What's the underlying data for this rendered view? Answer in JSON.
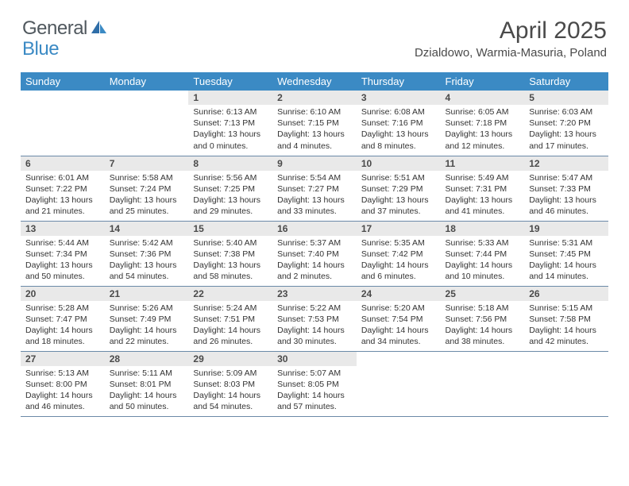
{
  "brand": {
    "text1": "General",
    "text2": "Blue"
  },
  "title": "April 2025",
  "location": "Dzialdowo, Warmia-Masuria, Poland",
  "colors": {
    "header_bg": "#3b8ac4",
    "header_text": "#ffffff",
    "daynum_bg": "#e9e9e9",
    "text": "#333333",
    "title_color": "#4a4a4a",
    "row_border": "#6b8aa8"
  },
  "dayNames": [
    "Sunday",
    "Monday",
    "Tuesday",
    "Wednesday",
    "Thursday",
    "Friday",
    "Saturday"
  ],
  "weeks": [
    [
      {
        "n": "",
        "sr": "",
        "ss": "",
        "dl": ""
      },
      {
        "n": "",
        "sr": "",
        "ss": "",
        "dl": ""
      },
      {
        "n": "1",
        "sr": "Sunrise: 6:13 AM",
        "ss": "Sunset: 7:13 PM",
        "dl": "Daylight: 13 hours and 0 minutes."
      },
      {
        "n": "2",
        "sr": "Sunrise: 6:10 AM",
        "ss": "Sunset: 7:15 PM",
        "dl": "Daylight: 13 hours and 4 minutes."
      },
      {
        "n": "3",
        "sr": "Sunrise: 6:08 AM",
        "ss": "Sunset: 7:16 PM",
        "dl": "Daylight: 13 hours and 8 minutes."
      },
      {
        "n": "4",
        "sr": "Sunrise: 6:05 AM",
        "ss": "Sunset: 7:18 PM",
        "dl": "Daylight: 13 hours and 12 minutes."
      },
      {
        "n": "5",
        "sr": "Sunrise: 6:03 AM",
        "ss": "Sunset: 7:20 PM",
        "dl": "Daylight: 13 hours and 17 minutes."
      }
    ],
    [
      {
        "n": "6",
        "sr": "Sunrise: 6:01 AM",
        "ss": "Sunset: 7:22 PM",
        "dl": "Daylight: 13 hours and 21 minutes."
      },
      {
        "n": "7",
        "sr": "Sunrise: 5:58 AM",
        "ss": "Sunset: 7:24 PM",
        "dl": "Daylight: 13 hours and 25 minutes."
      },
      {
        "n": "8",
        "sr": "Sunrise: 5:56 AM",
        "ss": "Sunset: 7:25 PM",
        "dl": "Daylight: 13 hours and 29 minutes."
      },
      {
        "n": "9",
        "sr": "Sunrise: 5:54 AM",
        "ss": "Sunset: 7:27 PM",
        "dl": "Daylight: 13 hours and 33 minutes."
      },
      {
        "n": "10",
        "sr": "Sunrise: 5:51 AM",
        "ss": "Sunset: 7:29 PM",
        "dl": "Daylight: 13 hours and 37 minutes."
      },
      {
        "n": "11",
        "sr": "Sunrise: 5:49 AM",
        "ss": "Sunset: 7:31 PM",
        "dl": "Daylight: 13 hours and 41 minutes."
      },
      {
        "n": "12",
        "sr": "Sunrise: 5:47 AM",
        "ss": "Sunset: 7:33 PM",
        "dl": "Daylight: 13 hours and 46 minutes."
      }
    ],
    [
      {
        "n": "13",
        "sr": "Sunrise: 5:44 AM",
        "ss": "Sunset: 7:34 PM",
        "dl": "Daylight: 13 hours and 50 minutes."
      },
      {
        "n": "14",
        "sr": "Sunrise: 5:42 AM",
        "ss": "Sunset: 7:36 PM",
        "dl": "Daylight: 13 hours and 54 minutes."
      },
      {
        "n": "15",
        "sr": "Sunrise: 5:40 AM",
        "ss": "Sunset: 7:38 PM",
        "dl": "Daylight: 13 hours and 58 minutes."
      },
      {
        "n": "16",
        "sr": "Sunrise: 5:37 AM",
        "ss": "Sunset: 7:40 PM",
        "dl": "Daylight: 14 hours and 2 minutes."
      },
      {
        "n": "17",
        "sr": "Sunrise: 5:35 AM",
        "ss": "Sunset: 7:42 PM",
        "dl": "Daylight: 14 hours and 6 minutes."
      },
      {
        "n": "18",
        "sr": "Sunrise: 5:33 AM",
        "ss": "Sunset: 7:44 PM",
        "dl": "Daylight: 14 hours and 10 minutes."
      },
      {
        "n": "19",
        "sr": "Sunrise: 5:31 AM",
        "ss": "Sunset: 7:45 PM",
        "dl": "Daylight: 14 hours and 14 minutes."
      }
    ],
    [
      {
        "n": "20",
        "sr": "Sunrise: 5:28 AM",
        "ss": "Sunset: 7:47 PM",
        "dl": "Daylight: 14 hours and 18 minutes."
      },
      {
        "n": "21",
        "sr": "Sunrise: 5:26 AM",
        "ss": "Sunset: 7:49 PM",
        "dl": "Daylight: 14 hours and 22 minutes."
      },
      {
        "n": "22",
        "sr": "Sunrise: 5:24 AM",
        "ss": "Sunset: 7:51 PM",
        "dl": "Daylight: 14 hours and 26 minutes."
      },
      {
        "n": "23",
        "sr": "Sunrise: 5:22 AM",
        "ss": "Sunset: 7:53 PM",
        "dl": "Daylight: 14 hours and 30 minutes."
      },
      {
        "n": "24",
        "sr": "Sunrise: 5:20 AM",
        "ss": "Sunset: 7:54 PM",
        "dl": "Daylight: 14 hours and 34 minutes."
      },
      {
        "n": "25",
        "sr": "Sunrise: 5:18 AM",
        "ss": "Sunset: 7:56 PM",
        "dl": "Daylight: 14 hours and 38 minutes."
      },
      {
        "n": "26",
        "sr": "Sunrise: 5:15 AM",
        "ss": "Sunset: 7:58 PM",
        "dl": "Daylight: 14 hours and 42 minutes."
      }
    ],
    [
      {
        "n": "27",
        "sr": "Sunrise: 5:13 AM",
        "ss": "Sunset: 8:00 PM",
        "dl": "Daylight: 14 hours and 46 minutes."
      },
      {
        "n": "28",
        "sr": "Sunrise: 5:11 AM",
        "ss": "Sunset: 8:01 PM",
        "dl": "Daylight: 14 hours and 50 minutes."
      },
      {
        "n": "29",
        "sr": "Sunrise: 5:09 AM",
        "ss": "Sunset: 8:03 PM",
        "dl": "Daylight: 14 hours and 54 minutes."
      },
      {
        "n": "30",
        "sr": "Sunrise: 5:07 AM",
        "ss": "Sunset: 8:05 PM",
        "dl": "Daylight: 14 hours and 57 minutes."
      },
      {
        "n": "",
        "sr": "",
        "ss": "",
        "dl": ""
      },
      {
        "n": "",
        "sr": "",
        "ss": "",
        "dl": ""
      },
      {
        "n": "",
        "sr": "",
        "ss": "",
        "dl": ""
      }
    ]
  ]
}
